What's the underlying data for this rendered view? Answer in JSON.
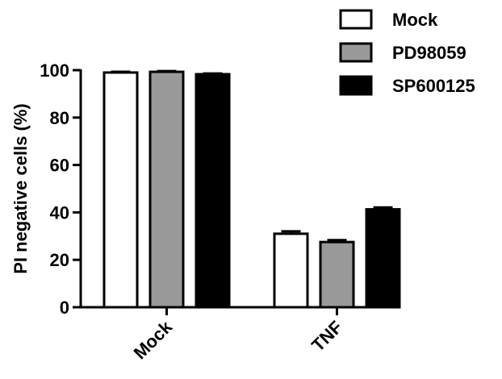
{
  "chart_data": {
    "type": "bar",
    "ylabel": "PI negative cells (%)",
    "xlabel": "",
    "categories": [
      "Mock",
      "TNF"
    ],
    "ylim": [
      0,
      100
    ],
    "yticks": [
      0,
      20,
      40,
      60,
      80,
      100
    ],
    "series": [
      {
        "name": "Mock",
        "values": [
          99,
          31
        ],
        "errors": [
          0.3,
          1.0
        ],
        "color": "#ffffff"
      },
      {
        "name": "PD98059",
        "values": [
          99.3,
          27.5
        ],
        "errors": [
          0.3,
          0.8
        ],
        "color": "#999999"
      },
      {
        "name": "SP600125",
        "values": [
          98.3,
          41.3
        ],
        "errors": [
          0.3,
          0.8
        ],
        "color": "#000000"
      }
    ],
    "legend_position": "top-right",
    "grid": false
  }
}
